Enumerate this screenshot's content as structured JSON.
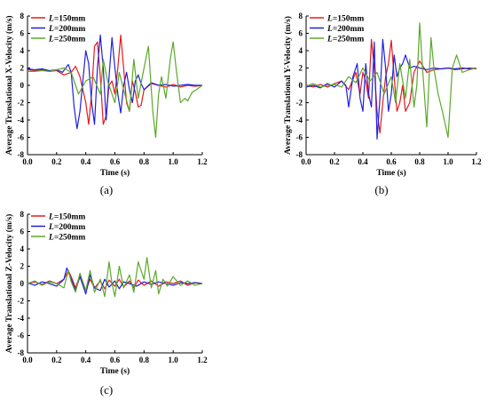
{
  "chart_data": [
    {
      "type": "line",
      "panel_label": "(a)",
      "xlabel": "Time (s)",
      "ylabel": "Average Translational X-Velocity (m/s)",
      "xlim": [
        0.0,
        1.2
      ],
      "ylim": [
        -8,
        8
      ],
      "x_ticks": [
        "0.0",
        "0.2",
        "0.4",
        "0.6",
        "0.8",
        "1.0",
        "1.2"
      ],
      "y_ticks": [
        "-8",
        "-6",
        "-4",
        "-2",
        "0",
        "2",
        "4",
        "6",
        "8"
      ],
      "grid": false,
      "legend_position": "top-left",
      "series": [
        {
          "name": "L=150mm",
          "legend_prefix": "L",
          "legend_suffix": "=150mm",
          "color": "#e41a1c",
          "x": [
            0.0,
            0.05,
            0.1,
            0.15,
            0.2,
            0.25,
            0.3,
            0.33,
            0.36,
            0.38,
            0.4,
            0.42,
            0.44,
            0.46,
            0.48,
            0.5,
            0.52,
            0.54,
            0.56,
            0.58,
            0.6,
            0.62,
            0.64,
            0.66,
            0.68,
            0.7,
            0.72,
            0.74,
            0.76,
            0.78,
            0.8,
            0.85,
            0.9,
            0.95,
            1.0,
            1.05,
            1.1,
            1.15,
            1.2
          ],
          "y": [
            1.8,
            1.7,
            1.8,
            1.6,
            1.7,
            1.2,
            1.5,
            2.2,
            1.0,
            -0.5,
            -2.0,
            -4.5,
            -1.0,
            4.5,
            5.0,
            1.0,
            -4.5,
            -3.5,
            0.0,
            0.5,
            -1.0,
            2.0,
            5.8,
            2.0,
            -2.0,
            -3.0,
            0.5,
            -0.8,
            -2.5,
            -2.3,
            -0.5,
            0.2,
            0.0,
            -0.2,
            0.1,
            -0.2,
            0.0,
            -0.1,
            0.0
          ]
        },
        {
          "name": "L=200mm",
          "legend_prefix": "L",
          "legend_suffix": "=200mm",
          "color": "#1f1fe0",
          "x": [
            0.0,
            0.05,
            0.1,
            0.15,
            0.2,
            0.24,
            0.28,
            0.3,
            0.32,
            0.34,
            0.36,
            0.38,
            0.4,
            0.42,
            0.44,
            0.46,
            0.48,
            0.5,
            0.52,
            0.54,
            0.56,
            0.58,
            0.6,
            0.62,
            0.64,
            0.66,
            0.68,
            0.7,
            0.72,
            0.74,
            0.76,
            0.78,
            0.8,
            0.85,
            0.9,
            0.95,
            1.0,
            1.05,
            1.1,
            1.15,
            1.2
          ],
          "y": [
            1.9,
            1.8,
            1.9,
            1.7,
            1.8,
            1.5,
            2.4,
            1.5,
            -2.5,
            -5.0,
            -3.0,
            0.5,
            4.0,
            2.5,
            -2.0,
            -4.5,
            2.0,
            5.8,
            2.0,
            -4.0,
            1.0,
            5.5,
            2.0,
            -1.0,
            -3.2,
            0.0,
            1.5,
            -0.5,
            -2.0,
            0.5,
            1.2,
            0.2,
            -0.5,
            0.3,
            0.0,
            0.1,
            -0.1,
            0.0,
            0.1,
            0.0,
            0.0
          ]
        },
        {
          "name": "L=250mm",
          "legend_prefix": "L",
          "legend_suffix": "=250mm",
          "color": "#5ba82a",
          "x": [
            0.0,
            0.05,
            0.1,
            0.15,
            0.2,
            0.25,
            0.3,
            0.35,
            0.4,
            0.45,
            0.5,
            0.52,
            0.55,
            0.6,
            0.63,
            0.66,
            0.7,
            0.73,
            0.76,
            0.8,
            0.83,
            0.86,
            0.88,
            0.9,
            0.92,
            0.95,
            0.98,
            1.0,
            1.02,
            1.05,
            1.08,
            1.1,
            1.13,
            1.16,
            1.2
          ],
          "y": [
            1.6,
            1.6,
            1.7,
            1.6,
            1.8,
            2.0,
            1.5,
            -1.0,
            0.5,
            1.0,
            -1.0,
            3.0,
            0.5,
            -2.0,
            1.5,
            -0.5,
            -3.0,
            3.0,
            -1.5,
            2.0,
            4.5,
            -3.0,
            -6.0,
            -1.0,
            1.0,
            -1.5,
            3.0,
            5.0,
            2.0,
            -2.0,
            -1.5,
            -1.8,
            -0.8,
            -0.5,
            0.0
          ]
        }
      ]
    },
    {
      "type": "line",
      "panel_label": "(b)",
      "xlabel": "Time (s)",
      "ylabel": "Average Translational Y-Velocity (m/s)",
      "xlim": [
        0.0,
        1.2
      ],
      "ylim": [
        -8,
        8
      ],
      "x_ticks": [
        "0.0",
        "0.2",
        "0.4",
        "0.6",
        "0.8",
        "1.0",
        "1.2"
      ],
      "y_ticks": [
        "-8",
        "-6",
        "-4",
        "-2",
        "0",
        "2",
        "4",
        "6",
        "8"
      ],
      "grid": false,
      "legend_position": "top-left",
      "series": [
        {
          "name": "L=150mm",
          "legend_prefix": "L",
          "legend_suffix": "=150mm",
          "color": "#e41a1c",
          "x": [
            0.0,
            0.05,
            0.1,
            0.15,
            0.2,
            0.25,
            0.3,
            0.35,
            0.38,
            0.4,
            0.42,
            0.44,
            0.46,
            0.48,
            0.5,
            0.52,
            0.54,
            0.56,
            0.58,
            0.6,
            0.62,
            0.64,
            0.66,
            0.68,
            0.7,
            0.73,
            0.76,
            0.8,
            0.85,
            0.9,
            0.95,
            1.0,
            1.05,
            1.1,
            1.15,
            1.2
          ],
          "y": [
            0.0,
            -0.2,
            0.1,
            -0.2,
            0.2,
            0.5,
            -0.5,
            1.5,
            -1.0,
            1.5,
            0.5,
            -1.5,
            5.3,
            2.0,
            -3.0,
            -5.5,
            -2.0,
            1.0,
            2.5,
            5.2,
            1.0,
            -3.0,
            -2.0,
            0.0,
            -3.0,
            -2.0,
            1.5,
            2.8,
            1.5,
            1.8,
            1.9,
            2.0,
            1.8,
            1.9,
            2.0,
            1.9
          ]
        },
        {
          "name": "L=200mm",
          "legend_prefix": "L",
          "legend_suffix": "=200mm",
          "color": "#1f1fe0",
          "x": [
            0.0,
            0.05,
            0.1,
            0.15,
            0.2,
            0.25,
            0.28,
            0.3,
            0.33,
            0.36,
            0.38,
            0.4,
            0.42,
            0.44,
            0.46,
            0.48,
            0.5,
            0.52,
            0.54,
            0.56,
            0.58,
            0.6,
            0.62,
            0.64,
            0.66,
            0.68,
            0.7,
            0.73,
            0.76,
            0.8,
            0.85,
            0.9,
            0.95,
            1.0,
            1.05,
            1.1,
            1.15,
            1.2
          ],
          "y": [
            -0.2,
            0.0,
            -0.3,
            0.2,
            -0.2,
            0.5,
            0.0,
            -2.5,
            1.0,
            2.5,
            -1.5,
            -3.0,
            2.5,
            -1.0,
            -2.5,
            5.0,
            -6.2,
            -1.5,
            5.3,
            2.0,
            -3.0,
            -1.0,
            3.5,
            1.0,
            2.0,
            2.5,
            3.5,
            2.0,
            2.2,
            2.0,
            1.8,
            2.0,
            1.9,
            2.0,
            1.9,
            2.0,
            1.9,
            2.0
          ]
        },
        {
          "name": "L=250mm",
          "legend_prefix": "L",
          "legend_suffix": "=250mm",
          "color": "#5ba82a",
          "x": [
            0.0,
            0.05,
            0.1,
            0.15,
            0.2,
            0.25,
            0.3,
            0.35,
            0.4,
            0.45,
            0.5,
            0.55,
            0.6,
            0.63,
            0.66,
            0.7,
            0.73,
            0.76,
            0.78,
            0.8,
            0.82,
            0.85,
            0.88,
            0.9,
            0.93,
            0.96,
            1.0,
            1.03,
            1.06,
            1.1,
            1.15,
            1.2
          ],
          "y": [
            -0.1,
            0.2,
            -0.2,
            0.0,
            0.1,
            -0.2,
            1.0,
            0.3,
            2.0,
            0.5,
            1.5,
            -1.0,
            1.0,
            -2.0,
            2.5,
            -1.5,
            3.0,
            -2.5,
            0.0,
            7.2,
            2.0,
            -4.8,
            5.5,
            2.0,
            -1.0,
            -3.0,
            -6.0,
            2.0,
            3.5,
            1.5,
            1.8,
            2.0
          ]
        }
      ]
    },
    {
      "type": "line",
      "panel_label": "(c)",
      "xlabel": "Time (s)",
      "ylabel": "Average Translational Z-Velocity (m/s)",
      "xlim": [
        0.0,
        1.2
      ],
      "ylim": [
        -8,
        8
      ],
      "x_ticks": [
        "0.0",
        "0.2",
        "0.4",
        "0.6",
        "0.8",
        "1.0",
        "1.2"
      ],
      "y_ticks": [
        "-8",
        "-6",
        "-4",
        "-2",
        "0",
        "2",
        "4",
        "6",
        "8"
      ],
      "grid": false,
      "legend_position": "top-left",
      "series": [
        {
          "name": "L=150mm",
          "legend_prefix": "L",
          "legend_suffix": "=150mm",
          "color": "#e41a1c",
          "x": [
            0.0,
            0.05,
            0.1,
            0.15,
            0.2,
            0.25,
            0.28,
            0.3,
            0.33,
            0.36,
            0.4,
            0.43,
            0.46,
            0.5,
            0.53,
            0.56,
            0.6,
            0.63,
            0.66,
            0.7,
            0.73,
            0.76,
            0.8,
            0.85,
            0.9,
            0.95,
            1.0,
            1.05,
            1.1,
            1.15,
            1.2
          ],
          "y": [
            0.0,
            0.2,
            -0.1,
            0.3,
            0.0,
            0.5,
            1.5,
            0.8,
            -0.5,
            1.0,
            -0.8,
            0.5,
            -0.5,
            0.3,
            -0.6,
            0.4,
            -0.3,
            0.5,
            -0.4,
            0.3,
            -0.5,
            0.4,
            -0.2,
            0.3,
            -0.3,
            0.2,
            0.0,
            0.3,
            -0.2,
            0.1,
            0.0
          ]
        },
        {
          "name": "L=200mm",
          "legend_prefix": "L",
          "legend_suffix": "=200mm",
          "color": "#1f1fe0",
          "x": [
            0.0,
            0.05,
            0.1,
            0.15,
            0.2,
            0.25,
            0.27,
            0.3,
            0.33,
            0.36,
            0.4,
            0.43,
            0.46,
            0.5,
            0.53,
            0.56,
            0.6,
            0.63,
            0.66,
            0.7,
            0.75,
            0.8,
            0.85,
            0.9,
            0.95,
            1.0,
            1.05,
            1.1,
            1.15,
            1.2
          ],
          "y": [
            0.1,
            -0.2,
            0.2,
            0.0,
            -0.3,
            0.5,
            1.8,
            0.5,
            -0.8,
            0.8,
            -1.2,
            1.0,
            -0.5,
            -0.8,
            0.5,
            -0.4,
            0.3,
            -0.6,
            0.2,
            0.0,
            -0.3,
            0.2,
            -0.1,
            0.2,
            0.0,
            -0.2,
            0.1,
            0.0,
            0.1,
            0.0
          ]
        },
        {
          "name": "L=250mm",
          "legend_prefix": "L",
          "legend_suffix": "=250mm",
          "color": "#5ba82a",
          "x": [
            0.0,
            0.05,
            0.1,
            0.15,
            0.2,
            0.25,
            0.28,
            0.3,
            0.33,
            0.36,
            0.4,
            0.43,
            0.46,
            0.5,
            0.53,
            0.56,
            0.58,
            0.6,
            0.63,
            0.66,
            0.7,
            0.73,
            0.76,
            0.8,
            0.82,
            0.85,
            0.88,
            0.9,
            0.93,
            0.96,
            1.0,
            1.05,
            1.1,
            1.15,
            1.2
          ],
          "y": [
            0.0,
            0.3,
            -0.2,
            0.2,
            0.0,
            -0.5,
            1.5,
            0.2,
            -1.0,
            1.2,
            -0.8,
            1.5,
            -1.0,
            0.5,
            -1.5,
            2.5,
            0.0,
            -1.5,
            2.0,
            -0.5,
            1.0,
            -1.0,
            2.5,
            0.5,
            3.0,
            -0.5,
            1.5,
            -1.2,
            0.5,
            -0.3,
            0.8,
            -0.2,
            0.3,
            -0.2,
            0.0
          ]
        }
      ]
    }
  ]
}
